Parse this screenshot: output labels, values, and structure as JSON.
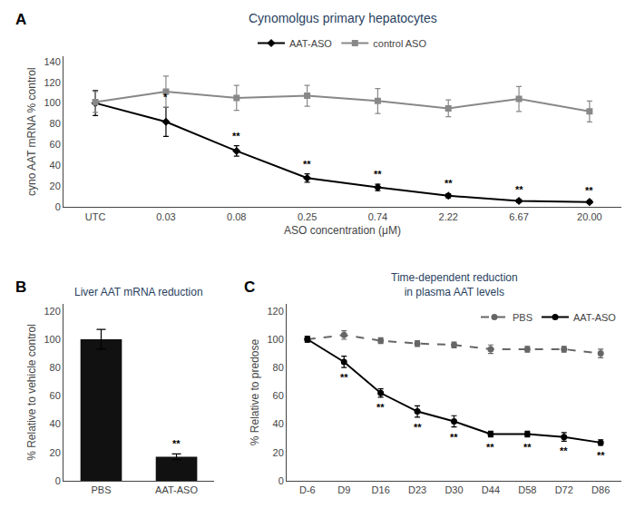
{
  "chart_data": [
    {
      "type": "line",
      "panel": "A",
      "title": "Cynomolgus primary hepatocytes",
      "x_label": "ASO concentration (μM)",
      "y_label": "cyno AAT mRNA % control",
      "categories": [
        "UTC",
        "0.03",
        "0.08",
        "0.25",
        "0.74",
        "2.22",
        "6.67",
        "20.00"
      ],
      "series": [
        {
          "name": "AAT-ASO",
          "color": "#000000",
          "marker": "diamond",
          "line_style": "solid",
          "values": [
            100,
            82,
            54,
            28,
            19,
            11,
            6,
            5
          ],
          "errors": [
            12,
            14,
            5,
            4,
            3,
            2,
            1.5,
            1.5
          ],
          "significance_above": [
            null,
            "*",
            "**",
            "**",
            "**",
            "**",
            "**",
            "**"
          ]
        },
        {
          "name": "control ASO",
          "color": "#888888",
          "marker": "square",
          "line_style": "solid",
          "values": [
            101,
            111,
            105,
            107,
            102,
            95,
            104,
            92
          ],
          "errors": [
            10,
            15,
            12,
            10,
            12,
            8,
            12,
            10
          ]
        }
      ],
      "ylim": [
        0,
        145
      ],
      "yticks": [
        0,
        20,
        40,
        60,
        80,
        100,
        120,
        140
      ],
      "grid": false,
      "legend": "upper center"
    },
    {
      "type": "bar",
      "panel": "B",
      "title": "Liver AAT mRNA reduction",
      "y_label": "% Relative to vehicle control",
      "categories": [
        "PBS",
        "AAT-ASO"
      ],
      "values": [
        100,
        17
      ],
      "errors": [
        7,
        2
      ],
      "significance_above": [
        null,
        "**"
      ],
      "color": "#111111",
      "ylim": [
        0,
        125
      ],
      "yticks": [
        0,
        20,
        40,
        60,
        80,
        100,
        120
      ],
      "grid": false
    },
    {
      "type": "line",
      "panel": "C",
      "title": "Time-dependent reduction\nin plasma AAT levels",
      "y_label": "% Relative to predose",
      "categories": [
        "D-6",
        "D9",
        "D16",
        "D23",
        "D30",
        "D44",
        "D58",
        "D72",
        "D86"
      ],
      "series": [
        {
          "name": "PBS",
          "color": "#666666",
          "marker": "circle",
          "line_style": "dashed",
          "values": [
            100,
            103,
            99,
            97,
            96,
            93,
            93,
            93,
            90
          ],
          "errors": [
            2,
            3,
            2,
            2,
            2,
            3,
            2,
            2,
            3
          ]
        },
        {
          "name": "AAT-ASO",
          "color": "#000000",
          "marker": "circle",
          "line_style": "solid",
          "values": [
            100,
            84,
            62,
            49,
            42,
            33,
            33,
            31,
            27
          ],
          "errors": [
            2,
            4,
            3,
            4,
            4,
            2,
            2,
            3,
            2
          ],
          "significance_below": [
            null,
            "**",
            "**",
            "**",
            "**",
            "**",
            "**",
            "**",
            "**"
          ]
        }
      ],
      "ylim": [
        0,
        125
      ],
      "yticks": [
        0,
        20,
        40,
        60,
        80,
        100,
        120
      ],
      "grid": false,
      "legend": "upper right"
    }
  ]
}
